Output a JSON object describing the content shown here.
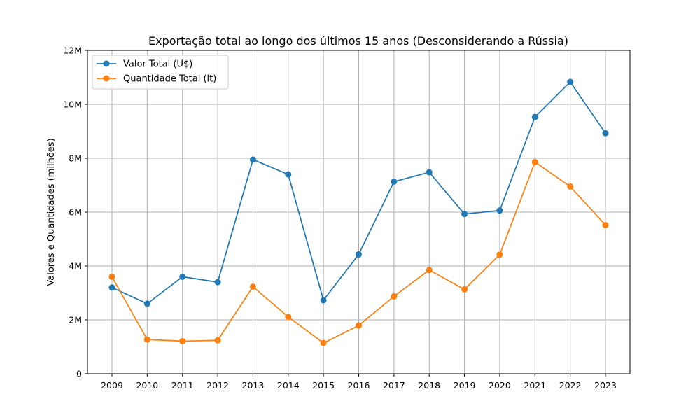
{
  "chart_data": {
    "type": "line",
    "title": "Exportação total ao longo dos últimos 15 anos (Desconsiderando a Rússia)",
    "xlabel": "",
    "ylabel": "Valores e Quantidades (milhões)",
    "x": [
      "2009",
      "2010",
      "2011",
      "2012",
      "2013",
      "2014",
      "2015",
      "2016",
      "2017",
      "2018",
      "2019",
      "2020",
      "2021",
      "2022",
      "2023"
    ],
    "ylim": [
      0,
      12000000
    ],
    "yticks": [
      0,
      2000000,
      4000000,
      6000000,
      8000000,
      10000000,
      12000000
    ],
    "ytick_labels": [
      "0",
      "2M",
      "4M",
      "6M",
      "8M",
      "10M",
      "12M"
    ],
    "grid": true,
    "legend_position": "top-left",
    "series": [
      {
        "name": "Valor Total (U$)",
        "color": "#1f77b4",
        "values": [
          3200000,
          2600000,
          3600000,
          3400000,
          7950000,
          7400000,
          2730000,
          4430000,
          7130000,
          7480000,
          5930000,
          6060000,
          9530000,
          10830000,
          8930000
        ]
      },
      {
        "name": "Quantidade Total (lt)",
        "color": "#ff7f0e",
        "values": [
          3600000,
          1270000,
          1210000,
          1240000,
          3230000,
          2110000,
          1140000,
          1790000,
          2870000,
          3850000,
          3130000,
          4420000,
          7860000,
          6950000,
          5520000
        ]
      }
    ]
  }
}
